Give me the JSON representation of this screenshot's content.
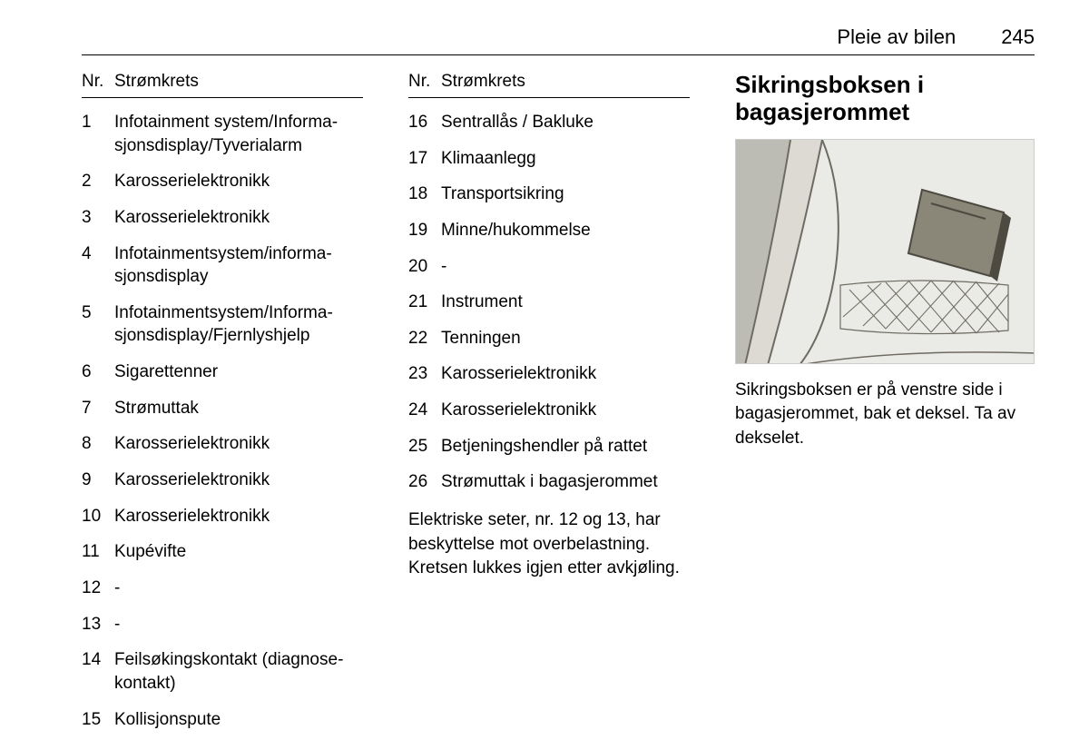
{
  "header": {
    "section_title": "Pleie av bilen",
    "page_number": "245"
  },
  "table_header": {
    "nr": "Nr.",
    "circuit": "Strømkrets"
  },
  "col1_rows": [
    {
      "nr": "1",
      "txt": "Infotainment system/Informa­sjonsdisplay/Tyverialarm"
    },
    {
      "nr": "2",
      "txt": "Karosserielektronikk"
    },
    {
      "nr": "3",
      "txt": "Karosserielektronikk"
    },
    {
      "nr": "4",
      "txt": "Infotainmentsystem/informa­sjonsdisplay"
    },
    {
      "nr": "5",
      "txt": "Infotainmentsystem/Informa­sjonsdisplay/Fjernlyshjelp"
    },
    {
      "nr": "6",
      "txt": "Sigarettenner"
    },
    {
      "nr": "7",
      "txt": "Strømuttak"
    },
    {
      "nr": "8",
      "txt": "Karosserielektronikk"
    },
    {
      "nr": "9",
      "txt": "Karosserielektronikk"
    },
    {
      "nr": "10",
      "txt": "Karosserielektronikk"
    },
    {
      "nr": "11",
      "txt": "Kupévifte"
    },
    {
      "nr": "12",
      "txt": "-"
    },
    {
      "nr": "13",
      "txt": "-"
    },
    {
      "nr": "14",
      "txt": "Feilsøkingskontakt (diagnose­kontakt)"
    },
    {
      "nr": "15",
      "txt": "Kollisjonspute"
    }
  ],
  "col2_rows": [
    {
      "nr": "16",
      "txt": "Sentrallås / Bakluke"
    },
    {
      "nr": "17",
      "txt": "Klimaanlegg"
    },
    {
      "nr": "18",
      "txt": "Transportsikring"
    },
    {
      "nr": "19",
      "txt": "Minne/hukommelse"
    },
    {
      "nr": "20",
      "txt": "-"
    },
    {
      "nr": "21",
      "txt": "Instrument"
    },
    {
      "nr": "22",
      "txt": "Tenningen"
    },
    {
      "nr": "23",
      "txt": "Karosserielektronikk"
    },
    {
      "nr": "24",
      "txt": "Karosserielektronikk"
    },
    {
      "nr": "25",
      "txt": "Betjeningshendler på rattet"
    },
    {
      "nr": "26",
      "txt": "Strømuttak i bagasjerommet"
    }
  ],
  "col2_note": "Elektriske seter, nr. 12 og 13, har be­skyttelse mot overbelastning. Kretsen lukkes igjen etter avkjøling.",
  "col3": {
    "heading": "Sikringsboksen i bagasjerommet",
    "caption": "Sikringsboksen er på venstre side i bagasjerommet, bak et deksel. Ta av dekselet."
  },
  "figure": {
    "background": "#eaeae6",
    "panel_light": "#dcdad3",
    "panel_shadow": "#bdbcb4",
    "fusebox_fill": "#8a8678",
    "fusebox_dark": "#4d4a41",
    "line_color": "#6e6b62"
  }
}
